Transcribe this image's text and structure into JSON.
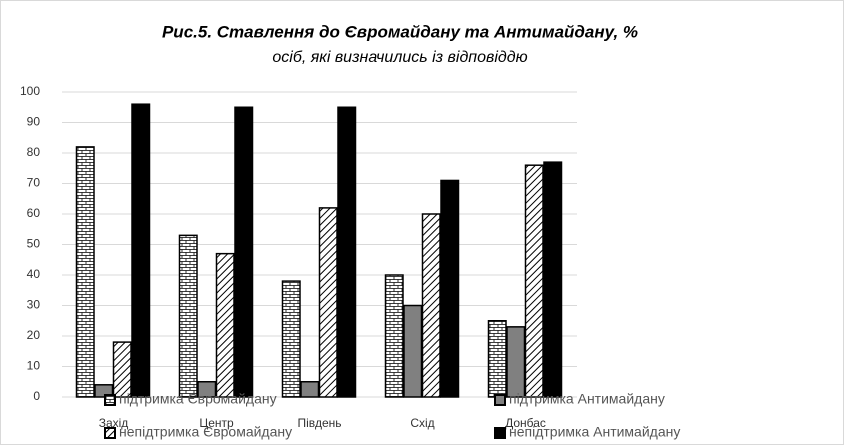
{
  "chart_data": {
    "type": "bar",
    "title": "Рис.5.  Ставлення до Євромайдану та Антимайдану, %",
    "subtitle": "осіб, які визначились із відповіддю",
    "categories": [
      "Захід",
      "Центр",
      "Південь",
      "Схід",
      "Донбас"
    ],
    "series": [
      {
        "name": "підтримка Євромайдану",
        "color": "#ffffff",
        "pattern": "brick",
        "values": [
          82,
          53,
          38,
          40,
          25
        ]
      },
      {
        "name": "підтримка Антимайдану",
        "color": "#808080",
        "pattern": "solid",
        "values": [
          4,
          5,
          5,
          30,
          23
        ]
      },
      {
        "name": "непідтримка Євромайдану",
        "color": "#ffffff",
        "pattern": "hatch",
        "values": [
          18,
          47,
          62,
          60,
          76
        ]
      },
      {
        "name": "непідтримка Антимайдану",
        "color": "#000000",
        "pattern": "solid",
        "values": [
          96,
          95,
          95,
          71,
          77
        ]
      }
    ],
    "ylim": [
      0,
      100
    ],
    "yticks": [
      0,
      10,
      20,
      30,
      40,
      50,
      60,
      70,
      80,
      90,
      100
    ],
    "grid": true
  }
}
